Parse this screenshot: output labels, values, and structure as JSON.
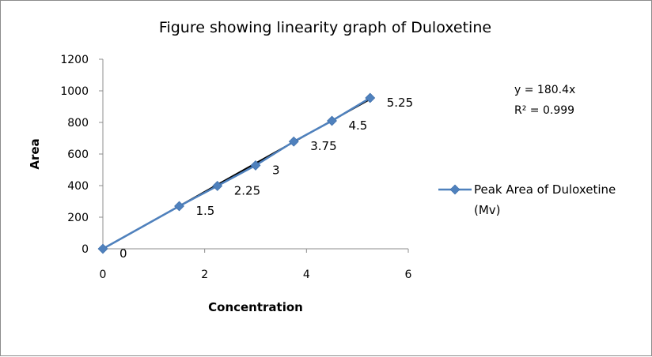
{
  "chart_data": {
    "type": "scatter",
    "title": "Figure showing linearity graph of Duloxetine",
    "xlabel": "Concentration",
    "ylabel": "Area",
    "xlim": [
      0,
      6
    ],
    "ylim": [
      0,
      1200
    ],
    "x_ticks": [
      "0",
      "2",
      "4",
      "6"
    ],
    "y_ticks": [
      "0",
      "200",
      "400",
      "600",
      "800",
      "1000",
      "1200"
    ],
    "grid": false,
    "legend_position": "right",
    "series": [
      {
        "name": "Peak Area of Duloxetine (Mv)",
        "color": "#4f81bd",
        "marker": "diamond",
        "x": [
          0,
          1.5,
          2.25,
          3,
          3.75,
          4.5,
          5.25
        ],
        "y": [
          0,
          270,
          398,
          528,
          679,
          810,
          955
        ],
        "labels": [
          "0",
          "1.5",
          "2.25",
          "3",
          "3.75",
          "4.5",
          "5.25"
        ]
      }
    ],
    "trendline": {
      "slope": 180.4,
      "intercept": 0,
      "color": "#000000"
    },
    "annotations": [
      "y = 180.4x",
      "R² = 0.999"
    ],
    "legend_lines": [
      "Peak Area of Duloxetine",
      "(Mv)"
    ]
  }
}
